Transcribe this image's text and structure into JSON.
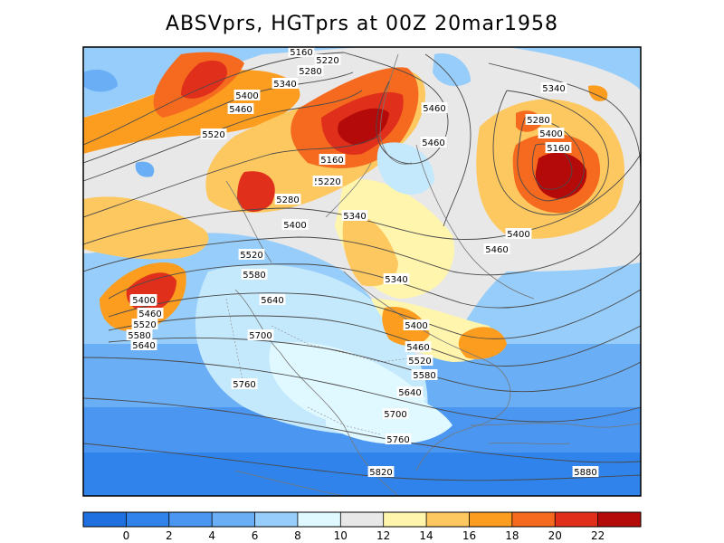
{
  "title": "ABSVprs, HGTprs at 00Z  20mar1958",
  "colorbar": {
    "colors": [
      "#1e6fe0",
      "#2f83ea",
      "#4a96f0",
      "#6aaef5",
      "#96cdfa",
      "#e0f8ff",
      "#e8e8e8",
      "#fff5ad",
      "#fdc860",
      "#fd9d20",
      "#f56a1e",
      "#e0301c",
      "#b40a0a"
    ],
    "labels": [
      "0",
      "2",
      "4",
      "6",
      "8",
      "10",
      "12",
      "14",
      "16",
      "18",
      "20",
      "22"
    ]
  },
  "contour_labels": [
    "5160",
    "5220",
    "5280",
    "5340",
    "5400",
    "5460",
    "5520",
    "5400",
    "5460",
    "5160",
    "5220",
    "5460",
    "5280",
    "5400",
    "5340",
    "5460",
    "5340",
    "5400",
    "5340",
    "5280",
    "5220",
    "5160",
    "5400",
    "5460",
    "5520",
    "5580",
    "5640",
    "5700",
    "5760",
    "5400",
    "5460",
    "5520",
    "5580",
    "5640",
    "5400",
    "5460",
    "5520",
    "5580",
    "5640",
    "5700",
    "5760",
    "5820",
    "5880"
  ]
}
